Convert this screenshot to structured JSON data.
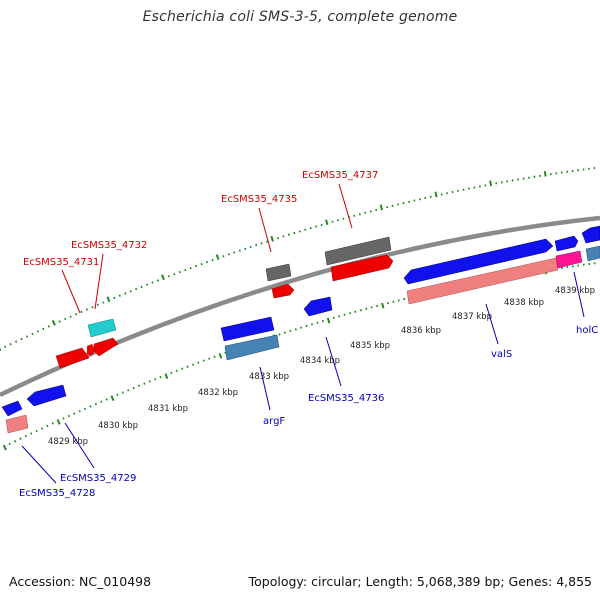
{
  "title": "Escherichia coli SMS-3-5, complete genome",
  "footer": {
    "accession": "Accession: NC_010498",
    "summary": "Topology: circular; Length: 5,068,389 bp; Genes: 4,855"
  },
  "colors": {
    "forward_gene": "#ff0000",
    "reverse_gene": "#0000ee",
    "forward_pseudo": "#555555",
    "forward_rna": "#00cccc",
    "reverse_steelblue": "#4682b4",
    "reverse_pink": "#f08080",
    "reverse_magenta": "#ff1493",
    "backbone": "#888888",
    "ticks": "#228b22",
    "label_forward": "#cc0000",
    "label_reverse": "#0000bb"
  },
  "scale_labels": [
    "4829 kbp",
    "4830 kbp",
    "4831 kbp",
    "4832 kbp",
    "4833 kbp",
    "4834 kbp",
    "4835 kbp",
    "4836 kbp",
    "4837 kbp",
    "4838 kbp",
    "4839 kbp"
  ],
  "forward_labels": [
    "EcSMS35_4731",
    "EcSMS35_4732",
    "EcSMS35_4735",
    "EcSMS35_4737"
  ],
  "reverse_labels": [
    "EcSMS35_4728",
    "EcSMS35_4729",
    "argF",
    "EcSMS35_4736",
    "valS",
    "holC"
  ]
}
